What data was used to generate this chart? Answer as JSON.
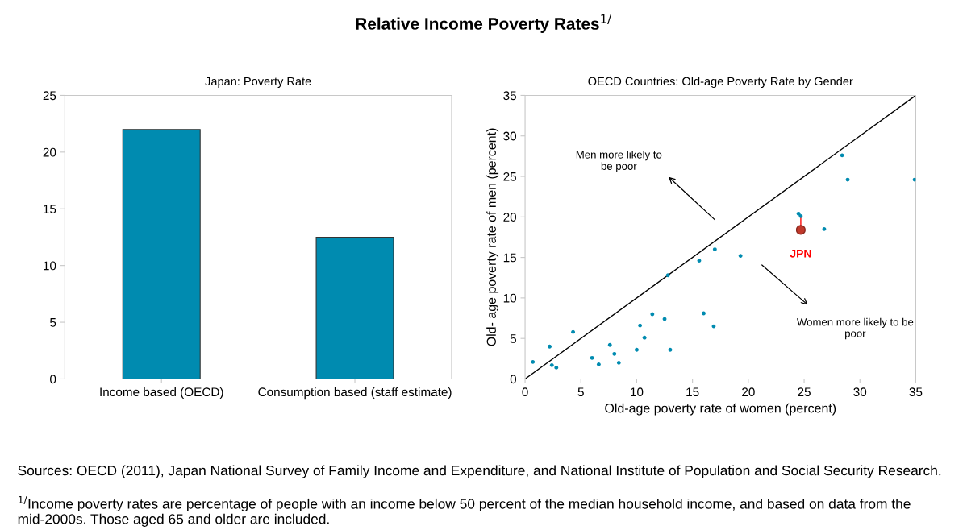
{
  "chart_data": [
    {
      "type": "bar",
      "title": "Japan: Poverty Rate",
      "categories": [
        "Income based (OECD)",
        "Consumption based (staff estimate)"
      ],
      "values": [
        22,
        12.5
      ],
      "color": "#008bb0",
      "ylim": [
        0,
        25
      ],
      "yticks": [
        0,
        5,
        10,
        15,
        20,
        25
      ],
      "grid": false,
      "annotations": [
        "Relative Income Poverty Rates$^{1/}$",
        "Sources: OECD (2011), Japan National Survey of Family Income and Expenditure, and National Institute of Population and Social Security Research.",
        "$^{1/}$Income poverty rates are percentage of people with an income below 50 percent of the median household income, and based on data from the mid-2000s. Those aged 65 and older are included."
      ]
    },
    {
      "type": "scatter",
      "title": "OECD Countries: Old-age Poverty Rate by Gender",
      "xlabel": "Old-age poverty rate of women (percent)",
      "ylabel": "Old- age poverty rate of men (percent)",
      "xlim": [
        0,
        35
      ],
      "ylim": [
        0,
        35
      ],
      "xticks": [
        0,
        5,
        10,
        15,
        20,
        25,
        30,
        35
      ],
      "yticks": [
        0,
        5,
        10,
        15,
        20,
        25,
        30,
        35
      ],
      "grid": false,
      "marker": "circle",
      "series": [
        {
          "color": "#008bb0",
          "x": [
            0.7,
            2.2,
            2.4,
            2.8,
            4.3,
            6.0,
            6.6,
            7.6,
            8.0,
            8.4,
            10.0,
            10.3,
            10.7,
            11.4,
            12.5,
            12.8,
            13.0,
            15.6,
            16.0,
            17.0,
            16.9,
            19.3,
            24.5,
            24.7,
            26.8,
            28.4,
            28.9,
            34.9
          ],
          "values": [
            2.1,
            4.0,
            1.7,
            1.4,
            5.8,
            2.6,
            1.8,
            4.2,
            3.1,
            2.0,
            3.6,
            6.6,
            5.1,
            8.0,
            7.4,
            12.8,
            3.6,
            14.6,
            8.1,
            16.0,
            6.5,
            15.2,
            20.4,
            20.1,
            18.5,
            27.6,
            24.6,
            24.6
          ]
        },
        {
          "type": "line",
          "color": "#000000",
          "x": [
            0,
            35
          ],
          "values": [
            0,
            35
          ],
          "marker": "none"
        },
        {
          "type": "line",
          "color": "#ff3333",
          "x": [
            24.7,
            24.7
          ],
          "values": [
            20.1,
            18.4
          ],
          "marker": "none"
        },
        {
          "name": "JPN",
          "color": "#c0392b",
          "x": [
            24.7
          ],
          "values": [
            18.4
          ]
        }
      ],
      "annotations": [
        "Men more likely to\nbe poor",
        "Women more likely to be\npoor"
      ]
    }
  ]
}
